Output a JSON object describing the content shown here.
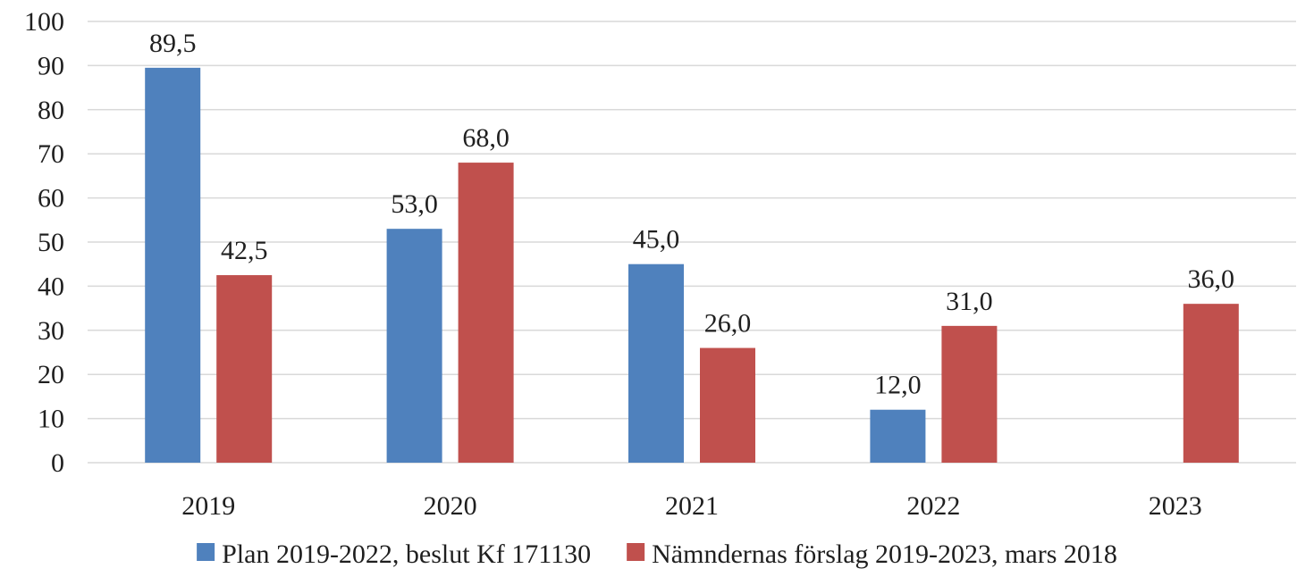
{
  "chart_data": {
    "type": "bar",
    "categories": [
      "2019",
      "2020",
      "2021",
      "2022",
      "2023"
    ],
    "series": [
      {
        "name": "Plan 2019-2022, beslut Kf 171130",
        "color": "#4f81bd",
        "values": [
          89.5,
          53.0,
          45.0,
          12.0,
          null
        ],
        "labels": [
          "89,5",
          "53,0",
          "45,0",
          "12,0",
          null
        ]
      },
      {
        "name": "Nämndernas förslag 2019-2023, mars 2018",
        "color": "#c0504d",
        "values": [
          42.5,
          68.0,
          26.0,
          31.0,
          36.0
        ],
        "labels": [
          "42,5",
          "68,0",
          "26,0",
          "31,0",
          "36,0"
        ]
      }
    ],
    "ylim": [
      0,
      100
    ],
    "yticks": [
      0,
      10,
      20,
      30,
      40,
      50,
      60,
      70,
      80,
      90,
      100
    ],
    "grid": true,
    "legend_position": "bottom"
  }
}
